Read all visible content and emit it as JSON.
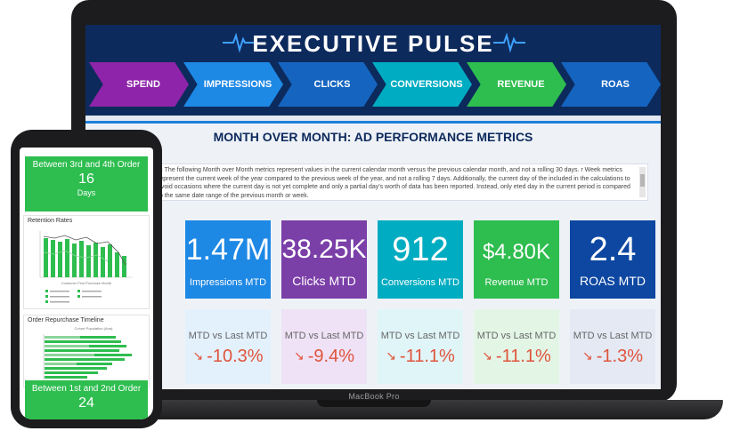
{
  "dashboard": {
    "title": "EXECUTIVE PULSE",
    "steps": [
      {
        "label": "SPEND",
        "color": "#8e24aa"
      },
      {
        "label": "IMPRESSIONS",
        "color": "#1e88e5"
      },
      {
        "label": "CLICKS",
        "color": "#1565c0"
      },
      {
        "label": "CONVERSIONS",
        "color": "#00acc1"
      },
      {
        "label": "REVENUE",
        "color": "#2ebd4f"
      },
      {
        "label": "ROAS",
        "color": "#1565c0"
      }
    ],
    "section_title": "MONTH OVER MONTH: AD PERFORMANCE METRICS",
    "description": "e: The following Month over Month metrics represent values in the current calendar month versus the previous calendar month, and not a rolling 30 days. r Week metrics represent the current week of the year compared to the previous week of the year, and not a rolling 7 days. Additionally, the current day of the included in the calculations to avoid occasions where the current day is not yet complete and only a partial day's worth of data has been reported. Instead, only eted day in the current period is compared to the same date range of the previous month or week.",
    "tiles": [
      {
        "value": "K",
        "label": "D",
        "color": "#8e24aa"
      },
      {
        "value": "1.47M",
        "label": "Impressions MTD",
        "color": "#1e88e5"
      },
      {
        "value": "38.25K",
        "label": "Clicks MTD",
        "color": "#7b3fa8"
      },
      {
        "value": "912",
        "label": "Conversions MTD",
        "color": "#00acc1"
      },
      {
        "value": "$4.80K",
        "label": "Revenue MTD",
        "color": "#2ebd4f"
      },
      {
        "value": "2.4",
        "label": "ROAS MTD",
        "color": "#0d47a1"
      }
    ],
    "comparisons": [
      {
        "label": "",
        "value": "%",
        "bg": "#f3e5f5"
      },
      {
        "label": "MTD vs Last MTD",
        "value": "-10.3%",
        "bg": "#e3f1fd"
      },
      {
        "label": "MTD vs Last MTD",
        "value": "-9.4%",
        "bg": "#efe2f6"
      },
      {
        "label": "MTD vs Last MTD",
        "value": "-11.1%",
        "bg": "#e0f5f8"
      },
      {
        "label": "MTD vs Last MTD",
        "value": "-11.1%",
        "bg": "#e3f6e6"
      },
      {
        "label": "MTD vs Last MTD",
        "value": "-1.3%",
        "bg": "#e4e9f4"
      }
    ],
    "negative_color": "#e0533b",
    "arrow_icon": "down-right-arrow"
  },
  "laptop": {
    "brand": "MacBook Pro"
  },
  "phone": {
    "top_card": {
      "title": "Between 3rd and 4th Order",
      "number": "16",
      "unit": "Days"
    },
    "retention": {
      "title": "Retention Rates",
      "xlabel": "Customer First Purchase Month"
    },
    "repurchase": {
      "title": "Order Repurchase Timeline",
      "axis_label": "Cohort Population (Ana)"
    },
    "bottom_card": {
      "title": "Between 1st and 2nd Order",
      "number": "24"
    }
  }
}
